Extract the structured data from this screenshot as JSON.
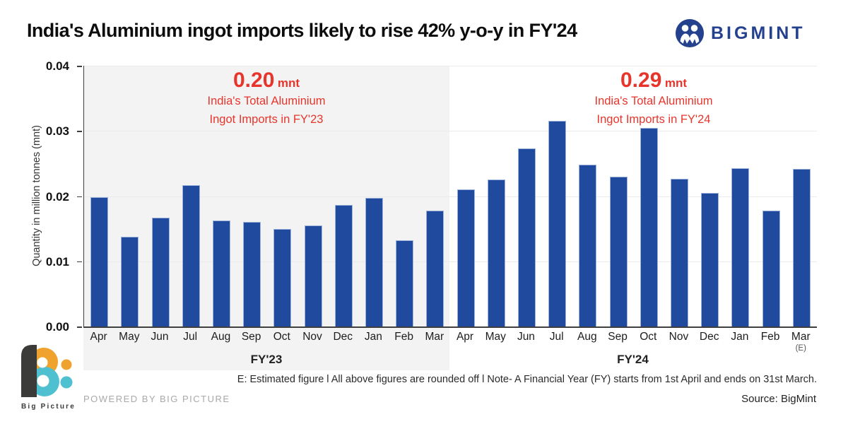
{
  "header": {
    "title": "India's Aluminium ingot imports likely to rise 42% y-o-y in FY'24",
    "brand": "BIGMINT"
  },
  "colors": {
    "bar": "#1f4a9d",
    "band": "#f2f3f2",
    "annotation_red": "#e8352c",
    "brand_navy": "#24418e",
    "grid": "#e9ebea",
    "axis": "#3f3f3f",
    "orange": "#efa32e",
    "teal": "#4fc0cf",
    "dark": "#3b3b39"
  },
  "chart_data": {
    "type": "bar",
    "title": "India's Aluminium ingot imports likely to rise 42% y-o-y in FY'24",
    "xlabel": "",
    "ylabel": "Quantity in million tonnes (mnt)",
    "ylim": [
      0,
      0.04
    ],
    "yticks_top_down": [
      "0.04",
      "0.03",
      "0.02",
      "0.01",
      "0.00"
    ],
    "grid": "horizontal",
    "legend": "none",
    "estimated_suffix": "(E)",
    "groups": [
      {
        "label": "FY'23",
        "months": [
          "Apr",
          "May",
          "Jun",
          "Jul",
          "Aug",
          "Sep",
          "Oct",
          "Nov",
          "Dec",
          "Jan",
          "Feb",
          "Mar"
        ],
        "values": [
          0.0198,
          0.0138,
          0.0167,
          0.0217,
          0.0163,
          0.016,
          0.015,
          0.0155,
          0.0186,
          0.0197,
          0.0132,
          0.0178
        ],
        "annotation": {
          "value": "0.20",
          "unit": "mnt",
          "line1": "India's Total Aluminium",
          "line2": "Ingot Imports in FY'23"
        }
      },
      {
        "label": "FY'24",
        "months": [
          "Apr",
          "May",
          "Jun",
          "Jul",
          "Aug",
          "Sep",
          "Oct",
          "Nov",
          "Dec",
          "Jan",
          "Feb",
          "Mar"
        ],
        "values": [
          0.021,
          0.0225,
          0.0273,
          0.0315,
          0.0248,
          0.023,
          0.0305,
          0.0227,
          0.0205,
          0.0243,
          0.0178,
          0.0242
        ],
        "annotation": {
          "value": "0.29",
          "unit": "mnt",
          "line1": "India's Total Aluminium",
          "line2": "Ingot Imports in FY'24"
        }
      }
    ]
  },
  "footer": {
    "note": "E: Estimated figure  l  All above figures are rounded off  l  Note- A Financial Year (FY) starts from 1st April and ends on 31st March.",
    "source": "Source: BigMint",
    "powered_by": "POWERED BY BIG PICTURE",
    "bp_brand": "Big Picture"
  }
}
